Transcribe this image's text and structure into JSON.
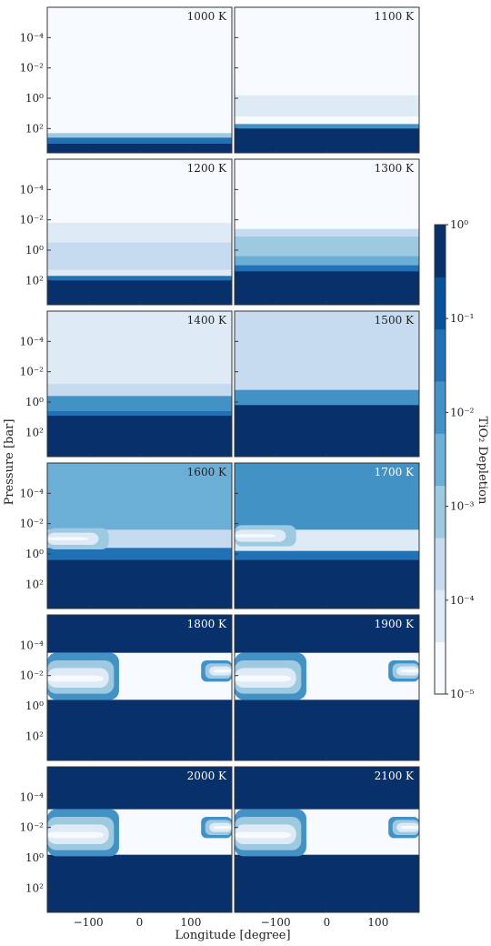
{
  "chart_data": {
    "type": "heatmap",
    "xlabel": "Longitude [degree]",
    "ylabel": "Pressure [bar]",
    "x_ticks": [
      "−100",
      "0",
      "100"
    ],
    "y_ticks": [
      "10⁻⁴",
      "10⁻²",
      "10⁰",
      "10²"
    ],
    "x_tick_values": [
      -100,
      0,
      100
    ],
    "y_tick_values_log10": [
      -4,
      -2,
      0,
      2
    ],
    "xlim": [
      -180,
      180
    ],
    "ylim_log10": [
      4,
      -6
    ],
    "colorbar": {
      "label": "TiO₂ Depletion",
      "ticks": [
        "10⁰",
        "10⁻¹",
        "10⁻²",
        "10⁻³",
        "10⁻⁴",
        "10⁻⁵"
      ],
      "tick_values_log10": [
        0,
        -1,
        -2,
        -3,
        -4,
        -5
      ],
      "scale": "log",
      "range": [
        1e-05,
        1
      ],
      "colors": [
        "#f7fbff",
        "#deebf7",
        "#c6dbef",
        "#9ecae1",
        "#6baed6",
        "#4292c6",
        "#2171b5",
        "#08519c",
        "#08306b"
      ]
    },
    "panels": [
      {
        "label": "1000 K",
        "level_log10": {
          "top": -6,
          "bands": [
            {
              "p": 2.1,
              "v": -5
            },
            {
              "p": 2.3,
              "v": -3
            },
            {
              "p": 2.6,
              "v": -1
            },
            {
              "p": 3.0,
              "v": 0
            }
          ]
        }
      },
      {
        "label": "1100 K",
        "level_log10": {
          "top": -6,
          "bands": [
            {
              "p": -0.2,
              "v": -4.5
            },
            {
              "p": 1.2,
              "v": -5
            },
            {
              "p": 1.7,
              "v": -2
            },
            {
              "p": 2.0,
              "v": 0
            }
          ]
        }
      },
      {
        "label": "1200 K",
        "level_log10": {
          "top": -6,
          "bands": [
            {
              "p": -1.8,
              "v": -4.5
            },
            {
              "p": -0.5,
              "v": -3.5
            },
            {
              "p": 1.3,
              "v": -4.5
            },
            {
              "p": 1.7,
              "v": -1
            },
            {
              "p": 2.0,
              "v": 0
            }
          ]
        }
      },
      {
        "label": "1300 K",
        "level_log10": {
          "top": -6,
          "bands": [
            {
              "p": -1.4,
              "v": -4
            },
            {
              "p": -0.9,
              "v": -3
            },
            {
              "p": 0.4,
              "v": -2.5
            },
            {
              "p": 1.0,
              "v": -1
            },
            {
              "p": 1.4,
              "v": 0
            }
          ]
        }
      },
      {
        "label": "1400 K",
        "level_log10": {
          "top": -4.5,
          "bands": [
            {
              "p": -1.2,
              "v": -3.5
            },
            {
              "p": -0.4,
              "v": -2
            },
            {
              "p": 0.6,
              "v": -1
            },
            {
              "p": 0.9,
              "v": 0
            }
          ]
        }
      },
      {
        "label": "1500 K",
        "level_log10": {
          "top": -3.5,
          "bands": [
            {
              "p": -0.8,
              "v": -2
            },
            {
              "p": 0.2,
              "v": 0
            }
          ]
        }
      },
      {
        "label": "1600 K",
        "level_log10": {
          "top": -2.8,
          "bands": [
            {
              "p": -1.6,
              "v": -4
            },
            {
              "p": -0.4,
              "v": -1
            },
            {
              "p": 0.4,
              "v": 0
            }
          ]
        }
      },
      {
        "label": "1700 K",
        "level_log10": {
          "top": -2,
          "bands": [
            {
              "p": -1.6,
              "v": -4.5
            },
            {
              "p": -0.2,
              "v": -1
            },
            {
              "p": 0.4,
              "v": 0
            }
          ]
        }
      },
      {
        "label": "1800 K",
        "level_log10": {
          "top": 0,
          "bands": [
            {
              "p": -3.5,
              "v": -5
            },
            {
              "p": -0.4,
              "v": 0
            }
          ]
        }
      },
      {
        "label": "1900 K",
        "level_log10": {
          "top": 0,
          "bands": [
            {
              "p": -3.5,
              "v": -5
            },
            {
              "p": -0.4,
              "v": 0
            }
          ]
        }
      },
      {
        "label": "2000 K",
        "level_log10": {
          "top": 0,
          "bands": [
            {
              "p": -3.2,
              "v": -5
            },
            {
              "p": -0.2,
              "v": 0
            }
          ]
        }
      },
      {
        "label": "2100 K",
        "level_log10": {
          "top": 0,
          "bands": [
            {
              "p": -3.2,
              "v": -5
            },
            {
              "p": -0.2,
              "v": 0
            }
          ]
        }
      }
    ]
  }
}
